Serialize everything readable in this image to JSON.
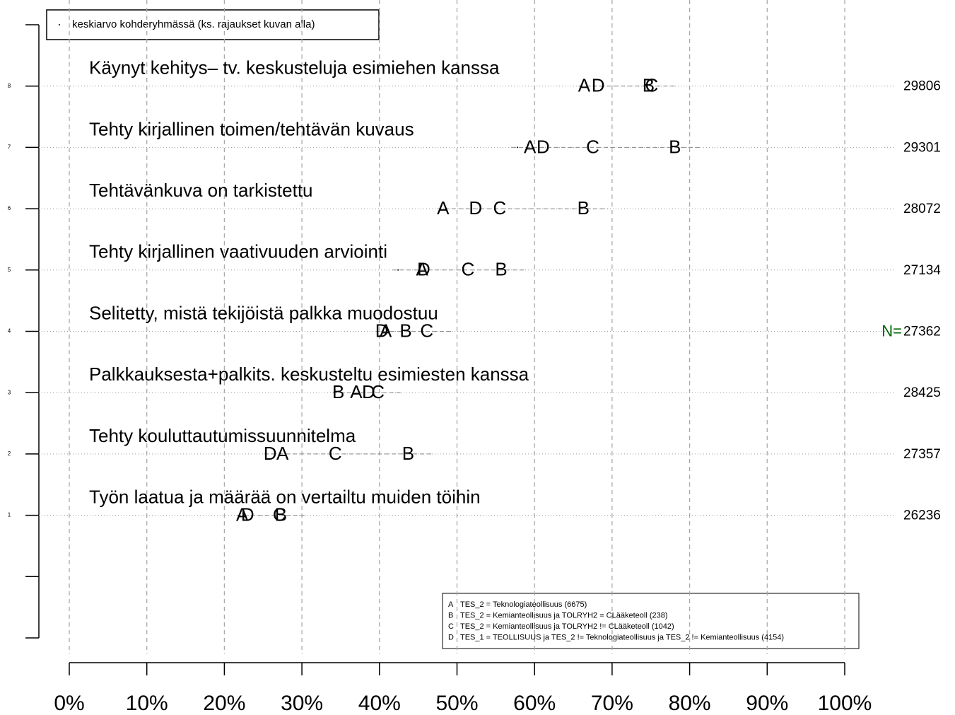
{
  "chart_data": {
    "type": "dot",
    "legend_top": "keskiarvo kohderyhmässä (ks. rajaukset kuvan alla)",
    "categories": [
      "Työn laatua ja määrää on vertailtu muiden töihin",
      "Tehty kouluttautumissuunnitelma",
      "Palkkauksesta+palkits. keskusteltu esimiesten kanssa",
      "Selitetty, mistä tekijöistä palkka muodostuu",
      "Tehty kirjallinen vaativuuden arviointi",
      "Tehtävänkuva on tarkistettu",
      "Tehty kirjallinen toimen/tehtävän kuvaus",
      "Käynyt kehitys– tv. keskusteluja esimiehen kanssa"
    ],
    "series": [
      {
        "name": "A",
        "values": [
          22.3,
          27.5,
          37.0,
          40.8,
          45.5,
          48.2,
          59.4,
          66.4
        ]
      },
      {
        "name": "B",
        "values": [
          27.3,
          43.7,
          34.7,
          43.4,
          55.7,
          66.3,
          78.1,
          74.7
        ]
      },
      {
        "name": "C",
        "values": [
          27.1,
          34.3,
          39.8,
          46.1,
          51.4,
          55.5,
          67.5,
          75.1
        ]
      },
      {
        "name": "D",
        "values": [
          23.0,
          25.9,
          38.6,
          40.3,
          45.7,
          52.4,
          61.1,
          68.2
        ]
      }
    ],
    "mean": [
      null,
      null,
      null,
      null,
      42.4,
      null,
      57.8,
      null
    ],
    "n_label": "N=",
    "n_values": [
      26236,
      27357,
      28425,
      27362,
      27134,
      28072,
      29301,
      29806
    ],
    "n_color": "#006400",
    "xlim": [
      0,
      100
    ],
    "xticks": [
      {
        "value": 0,
        "label": "0%"
      },
      {
        "value": 10,
        "label": "10%"
      },
      {
        "value": 20,
        "label": "20%"
      },
      {
        "value": 30,
        "label": "30%"
      },
      {
        "value": 40,
        "label": "40%"
      },
      {
        "value": 50,
        "label": "50%"
      },
      {
        "value": 60,
        "label": "60%"
      },
      {
        "value": 70,
        "label": "70%"
      },
      {
        "value": 80,
        "label": "80%"
      },
      {
        "value": 90,
        "label": "90%"
      },
      {
        "value": 100,
        "label": "100%"
      }
    ],
    "ylim": [
      -1,
      9
    ],
    "yticks": [
      1,
      2,
      3,
      4,
      5,
      6,
      7,
      8
    ],
    "yminor_ticks": [
      -1,
      0,
      9
    ],
    "grid": true,
    "legend_bottom": [
      {
        "key": "A",
        "text": "TES_2 = Teknologiateollisuus (6675)"
      },
      {
        "key": "B",
        "text": "TES_2 = Kemianteollisuus ja TOLRYH2 = CLääketeoll (238)"
      },
      {
        "key": "C",
        "text": "TES_2 = Kemianteollisuus ja TOLRYH2 != CLääketeoll (1042)"
      },
      {
        "key": "D",
        "text": "TES_1 = TEOLLISUUS ja  TES_2 != Teknologiateollisuus ja TES_2 != Kemianteollisuus (4154)"
      }
    ]
  }
}
